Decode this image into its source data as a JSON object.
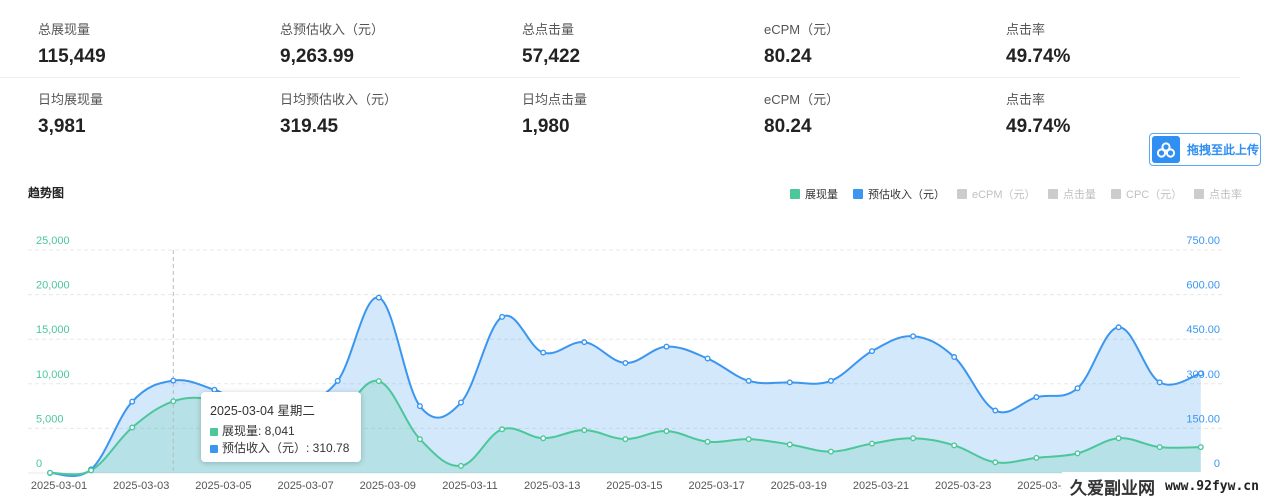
{
  "stats_total": [
    {
      "label": "总展现量",
      "value": "115,449"
    },
    {
      "label": "总预估收入（元）",
      "value": "9,263.99"
    },
    {
      "label": "总点击量",
      "value": "57,422"
    },
    {
      "label": "eCPM（元）",
      "value": "80.24"
    },
    {
      "label": "点击率",
      "value": "49.74%"
    }
  ],
  "stats_daily": [
    {
      "label": "日均展现量",
      "value": "3,981"
    },
    {
      "label": "日均预估收入（元）",
      "value": "319.45"
    },
    {
      "label": "日均点击量",
      "value": "1,980"
    },
    {
      "label": "eCPM（元）",
      "value": "80.24"
    },
    {
      "label": "点击率",
      "value": "49.74%"
    }
  ],
  "upload_button": {
    "label": "拖拽至此上传",
    "icon": "cloud-link-icon"
  },
  "chart_title": "趋势图",
  "legend": [
    {
      "name": "展现量",
      "color": "#4cc79a",
      "active": true
    },
    {
      "name": "预估收入（元）",
      "color": "#3b96f0",
      "active": true
    },
    {
      "name": "eCPM（元）",
      "color": "#cccccc",
      "active": false
    },
    {
      "name": "点击量",
      "color": "#cccccc",
      "active": false
    },
    {
      "name": "CPC（元）",
      "color": "#cccccc",
      "active": false
    },
    {
      "name": "点击率",
      "color": "#cccccc",
      "active": false
    }
  ],
  "tooltip": {
    "date": "2025-03-04 星期二",
    "series1": "展现量: 8,041",
    "series2": "预估收入（元）: 310.78"
  },
  "watermark": {
    "cn": "久爱副业网",
    "url": "www.92fyw.cn"
  },
  "chart_data": {
    "type": "area",
    "x": [
      "2025-03-01",
      "2025-03-02",
      "2025-03-03",
      "2025-03-04",
      "2025-03-05",
      "2025-03-06",
      "2025-03-07",
      "2025-03-08",
      "2025-03-09",
      "2025-03-10",
      "2025-03-11",
      "2025-03-12",
      "2025-03-13",
      "2025-03-14",
      "2025-03-15",
      "2025-03-16",
      "2025-03-17",
      "2025-03-18",
      "2025-03-19",
      "2025-03-20",
      "2025-03-21",
      "2025-03-22",
      "2025-03-23",
      "2025-03-24",
      "2025-03-25",
      "2025-03-26",
      "2025-03-27",
      "2025-03-28",
      "2025-03-29"
    ],
    "x_tick_labels": [
      "2025-03-01",
      "2025-03-03",
      "2025-03-05",
      "2025-03-07",
      "2025-03-09",
      "2025-03-11",
      "2025-03-13",
      "2025-03-15",
      "2025-03-17",
      "2025-03-19",
      "2025-03-21",
      "2025-03-23",
      "2025-03-25"
    ],
    "series": [
      {
        "name": "展现量",
        "axis": "left",
        "color": "#4cc79a",
        "values": [
          30,
          300,
          5100,
          8041,
          8200,
          6500,
          5200,
          6500,
          10300,
          3800,
          800,
          4900,
          3900,
          4800,
          3800,
          4700,
          3500,
          3800,
          3200,
          2400,
          3300,
          3900,
          3100,
          1200,
          1700,
          2200,
          3900,
          2900,
          2900
        ]
      },
      {
        "name": "预估收入（元）",
        "axis": "right",
        "color": "#3b96f0",
        "values": [
          0,
          12,
          240,
          310.78,
          280,
          220,
          230,
          310,
          590,
          225,
          237,
          525,
          405,
          440,
          370,
          425,
          385,
          310,
          305,
          310,
          410,
          460,
          390,
          210,
          255,
          285,
          490,
          305,
          335
        ]
      }
    ],
    "y_left": {
      "min": 0,
      "max": 25000,
      "ticks": [
        "0",
        "5,000",
        "10,000",
        "15,000",
        "20,000",
        "25,000"
      ]
    },
    "y_right": {
      "min": 0,
      "max": 750,
      "ticks": [
        "0",
        "150.00",
        "300.00",
        "450.00",
        "600.00",
        "750.00"
      ]
    },
    "grid": true,
    "legend_position": "top-right",
    "highlight_index": 3
  }
}
